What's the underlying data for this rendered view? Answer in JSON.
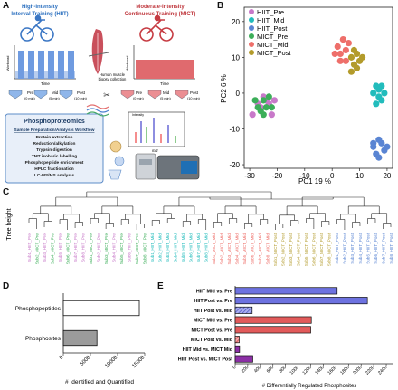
{
  "panels": {
    "A": "A",
    "B": "B",
    "C": "C",
    "D": "D",
    "E": "E"
  },
  "panel_a": {
    "hiit_title_1": "High-Intensity",
    "hiit_title_2": "Interval Training (HIIT)",
    "mict_title_1": "Moderate-Intensity",
    "mict_title_2": "Continuous Training (MICT)",
    "workload_label": "Workload",
    "time_label": "Time",
    "muscle_caption_1": "Human muscle",
    "muscle_caption_2": "biopsy collection",
    "tubes_left": [
      {
        "name": "Pre",
        "time": "(0 min)"
      },
      {
        "name": "Mid",
        "time": "(5 min)"
      },
      {
        "name": "Post",
        "time": "(10 min)"
      }
    ],
    "tubes_right": [
      {
        "name": "Pre",
        "time": "(0 min)"
      },
      {
        "name": "Mid",
        "time": "(5 min)"
      },
      {
        "name": "Post",
        "time": "(10 min)"
      }
    ],
    "workflow_title": "Phosphoproteomics",
    "workflow_subtitle": "Sample Preparation/Analysis Workflow",
    "workflow_steps": [
      "Protein extraction",
      "Reduction/alkylation",
      "Trypsin digestion",
      "TMT isobaric labelling",
      "Phosphopeptide enrichment",
      "HPLC fractionation",
      "LC-MS/MS analysis"
    ],
    "spectrum_x": "m/z",
    "spectrum_y": "Intensity",
    "colors": {
      "hiit": "#5a8fd6",
      "mict": "#d9545c",
      "workflow_border": "#5d8cc8",
      "workflow_fill": "#e6eef9"
    }
  },
  "dendrogram": {
    "ylabel": "Tree height",
    "leaves": [
      {
        "label": "Sub1_HIIT_Pre",
        "group": "hiit_pre"
      },
      {
        "label": "Sub2_MICT_Pre",
        "group": "mict_pre"
      },
      {
        "label": "Sub3_HIIT_Pre",
        "group": "hiit_pre"
      },
      {
        "label": "Sub4_MICT_Pre",
        "group": "mict_pre"
      },
      {
        "label": "Sub5_HIIT_Pre",
        "group": "hiit_pre"
      },
      {
        "label": "Sub6_MICT_Pre",
        "group": "mict_pre"
      },
      {
        "label": "Sub7_HIIT_Pre",
        "group": "hiit_pre"
      },
      {
        "label": "Sub8_HIIT_Pre",
        "group": "hiit_pre"
      },
      {
        "label": "Sub1_MICT_Pre",
        "group": "mict_pre"
      },
      {
        "label": "Sub2_HIIT_Pre",
        "group": "hiit_pre"
      },
      {
        "label": "Sub3_MICT_Pre",
        "group": "mict_pre"
      },
      {
        "label": "Sub4_HIIT_Pre",
        "group": "hiit_pre"
      },
      {
        "label": "Sub5_MICT_Pre",
        "group": "mict_pre"
      },
      {
        "label": "Sub6_HIIT_Pre",
        "group": "hiit_pre"
      },
      {
        "label": "Sub7_MICT_Pre",
        "group": "mict_pre"
      },
      {
        "label": "Sub8_MICT_Pre",
        "group": "mict_pre"
      },
      {
        "label": "Sub1_HIIT_Mid",
        "group": "hiit_mid"
      },
      {
        "label": "Sub2_HIIT_Mid",
        "group": "hiit_mid"
      },
      {
        "label": "Sub3_HIIT_Mid",
        "group": "hiit_mid"
      },
      {
        "label": "Sub4_HIIT_Mid",
        "group": "hiit_mid"
      },
      {
        "label": "Sub5_HIIT_Mid",
        "group": "hiit_mid"
      },
      {
        "label": "Sub6_HIIT_Mid",
        "group": "hiit_mid"
      },
      {
        "label": "Sub7_HIIT_Mid",
        "group": "hiit_mid"
      },
      {
        "label": "Sub8_HIIT_Mid",
        "group": "hiit_mid"
      },
      {
        "label": "Sub1_MICT_Mid",
        "group": "mict_mid"
      },
      {
        "label": "Sub2_MICT_Mid",
        "group": "mict_mid"
      },
      {
        "label": "Sub3_MICT_Mid",
        "group": "mict_mid"
      },
      {
        "label": "Sub4_MICT_Mid",
        "group": "mict_mid"
      },
      {
        "label": "Sub5_MICT_Mid",
        "group": "mict_mid"
      },
      {
        "label": "Sub6_MICT_Mid",
        "group": "mict_mid"
      },
      {
        "label": "Sub7_MICT_Mid",
        "group": "mict_mid"
      },
      {
        "label": "Sub8_MICT_Mid",
        "group": "mict_mid"
      },
      {
        "label": "Sub1_MICT_Post",
        "group": "mict_post"
      },
      {
        "label": "Sub2_MICT_Post",
        "group": "mict_post"
      },
      {
        "label": "Sub3_MICT_Post",
        "group": "mict_post"
      },
      {
        "label": "Sub4_MICT_Post",
        "group": "mict_post"
      },
      {
        "label": "Sub5_MICT_Post",
        "group": "mict_post"
      },
      {
        "label": "Sub6_MICT_Post",
        "group": "mict_post"
      },
      {
        "label": "Sub7_MICT_Post",
        "group": "mict_post"
      },
      {
        "label": "Sub8_MICT_Post",
        "group": "mict_post"
      },
      {
        "label": "Sub1_HIIT_Post",
        "group": "hiit_post"
      },
      {
        "label": "Sub2_HIIT_Post",
        "group": "hiit_post"
      },
      {
        "label": "Sub3_HIIT_Post",
        "group": "hiit_post"
      },
      {
        "label": "Sub4_HIIT_Post",
        "group": "hiit_post"
      },
      {
        "label": "Sub5_HIIT_Post",
        "group": "hiit_post"
      },
      {
        "label": "Sub6_HIIT_Post",
        "group": "hiit_post"
      },
      {
        "label": "Sub7_HIIT_Post",
        "group": "hiit_post"
      },
      {
        "label": "Sub8_HIIT_Post",
        "group": "hiit_post"
      }
    ]
  },
  "chart_data": [
    {
      "panel": "B",
      "type": "scatter",
      "xlabel": "PC1 19 %",
      "ylabel": "PC2 6 %",
      "xlim": [
        -32,
        22
      ],
      "ylim": [
        -21,
        24
      ],
      "xticks": [
        -30,
        -20,
        -10,
        0,
        10,
        20
      ],
      "yticks": [
        -20,
        -10,
        0,
        10,
        20
      ],
      "legend_position": "top-left",
      "series": [
        {
          "name": "HIIT_Pre",
          "color": "#c879c9",
          "points": [
            [
              -29,
              -6
            ],
            [
              -27,
              -3
            ],
            [
              -26,
              -4
            ],
            [
              -24,
              -2
            ],
            [
              -25,
              -1
            ],
            [
              -23,
              -3
            ],
            [
              -22,
              -6
            ],
            [
              -21,
              -2
            ]
          ]
        },
        {
          "name": "HIIT_Mid",
          "color": "#22bcbc",
          "points": [
            [
              15,
              0
            ],
            [
              17,
              -1
            ],
            [
              18,
              2
            ],
            [
              16,
              -3
            ],
            [
              19,
              0
            ],
            [
              17,
              1
            ],
            [
              18,
              -2
            ],
            [
              16,
              2
            ]
          ]
        },
        {
          "name": "HIIT_Post",
          "color": "#5a85d3",
          "points": [
            [
              15,
              -15
            ],
            [
              16,
              -17
            ],
            [
              18,
              -14
            ],
            [
              19,
              -16
            ],
            [
              17,
              -13
            ],
            [
              17,
              -18
            ],
            [
              15,
              -14
            ],
            [
              20,
              -15
            ]
          ]
        },
        {
          "name": "MICT_Pre",
          "color": "#3cae59",
          "points": [
            [
              -28,
              -2
            ],
            [
              -26,
              -5
            ],
            [
              -25,
              -2
            ],
            [
              -24,
              -4
            ],
            [
              -23,
              -1
            ],
            [
              -22,
              -4
            ],
            [
              -27,
              -4
            ],
            [
              -25,
              -6
            ]
          ]
        },
        {
          "name": "MICT_Mid",
          "color": "#ee6f6a",
          "points": [
            [
              2,
              13
            ],
            [
              3,
              11
            ],
            [
              4,
              15
            ],
            [
              5,
              12
            ],
            [
              5,
              9
            ],
            [
              6,
              14
            ],
            [
              3,
              9
            ],
            [
              1,
              11
            ]
          ]
        },
        {
          "name": "MICT_Post",
          "color": "#b39b2b",
          "points": [
            [
              7,
              10
            ],
            [
              8,
              8
            ],
            [
              9,
              11
            ],
            [
              9,
              7
            ],
            [
              10,
              9
            ],
            [
              8,
              12
            ],
            [
              7,
              6
            ],
            [
              11,
              10
            ]
          ]
        }
      ]
    },
    {
      "panel": "D",
      "type": "bar",
      "orientation": "horizontal",
      "categories": [
        "Phosphopeptides",
        "Phosphosites"
      ],
      "values": [
        14000,
        6200
      ],
      "colors": [
        "#ffffff",
        "#9b9b9b"
      ],
      "xlabel": "# Identified and Quantified",
      "xlim": [
        0,
        15000
      ],
      "xticks": [
        0,
        5000,
        10000,
        15000
      ]
    },
    {
      "panel": "E",
      "type": "bar",
      "orientation": "horizontal",
      "categories": [
        "HIIT Mid vs. Pre",
        "HIIT Post vs. Pre",
        "HIIT Post vs. Mid",
        "MICT Mid vs. Pre",
        "MICT Post vs. Pre",
        "MICT Post vs. Mid",
        "HIIT Mid vs. MICT Mid",
        "HIIT Post vs. MICT Post"
      ],
      "values": [
        1620,
        2100,
        270,
        1210,
        1200,
        65,
        70,
        280
      ],
      "colors": [
        "#6d72e0",
        "#6d72e0",
        "#6d72e0",
        "#e25a5a",
        "#e25a5a",
        "#e25a5a",
        "#8c2fa6",
        "#8c2fa6"
      ],
      "hatched": [
        false,
        false,
        true,
        false,
        false,
        true,
        false,
        false
      ],
      "xlabel": "# Differentially Regulated Phosphosites",
      "xlim": [
        0,
        2500
      ],
      "xticks": [
        0,
        200,
        400,
        600,
        800,
        1000,
        1200,
        1400,
        1600,
        1800,
        2000,
        2200,
        2400
      ]
    }
  ]
}
